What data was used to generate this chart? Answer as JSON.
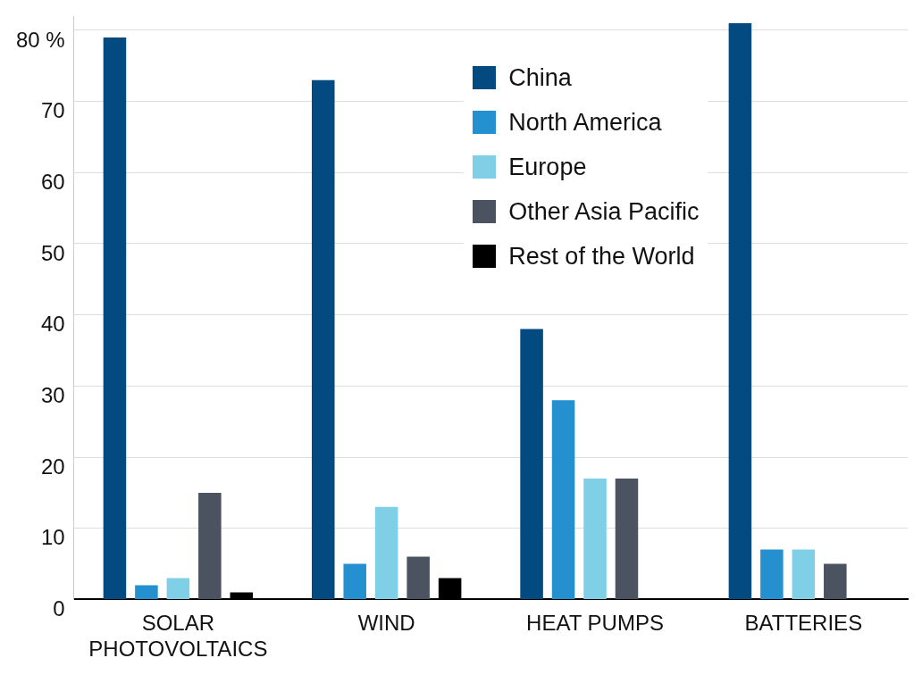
{
  "chart_data": {
    "type": "bar",
    "categories": [
      "SOLAR\nPHOTOVOLTAICS",
      "WIND",
      "HEAT PUMPS",
      "BATTERIES"
    ],
    "series": [
      {
        "name": "China",
        "color": "#034a80",
        "values": [
          79,
          73,
          38,
          81
        ]
      },
      {
        "name": "North America",
        "color": "#2590d0",
        "values": [
          2,
          5,
          28,
          7
        ]
      },
      {
        "name": "Europe",
        "color": "#7fd0e6",
        "values": [
          3,
          13,
          17,
          7
        ]
      },
      {
        "name": "Other Asia Pacific",
        "color": "#4b5260",
        "values": [
          15,
          6,
          17,
          5
        ]
      },
      {
        "name": "Rest of the World",
        "color": "#000000",
        "values": [
          1,
          3,
          null,
          null
        ]
      }
    ],
    "ylim": [
      0,
      82
    ],
    "yticks": [
      0,
      10,
      20,
      30,
      40,
      50,
      60,
      70,
      {
        "value": 80,
        "label": "80 %"
      }
    ],
    "grid": "y",
    "legend": "top"
  }
}
